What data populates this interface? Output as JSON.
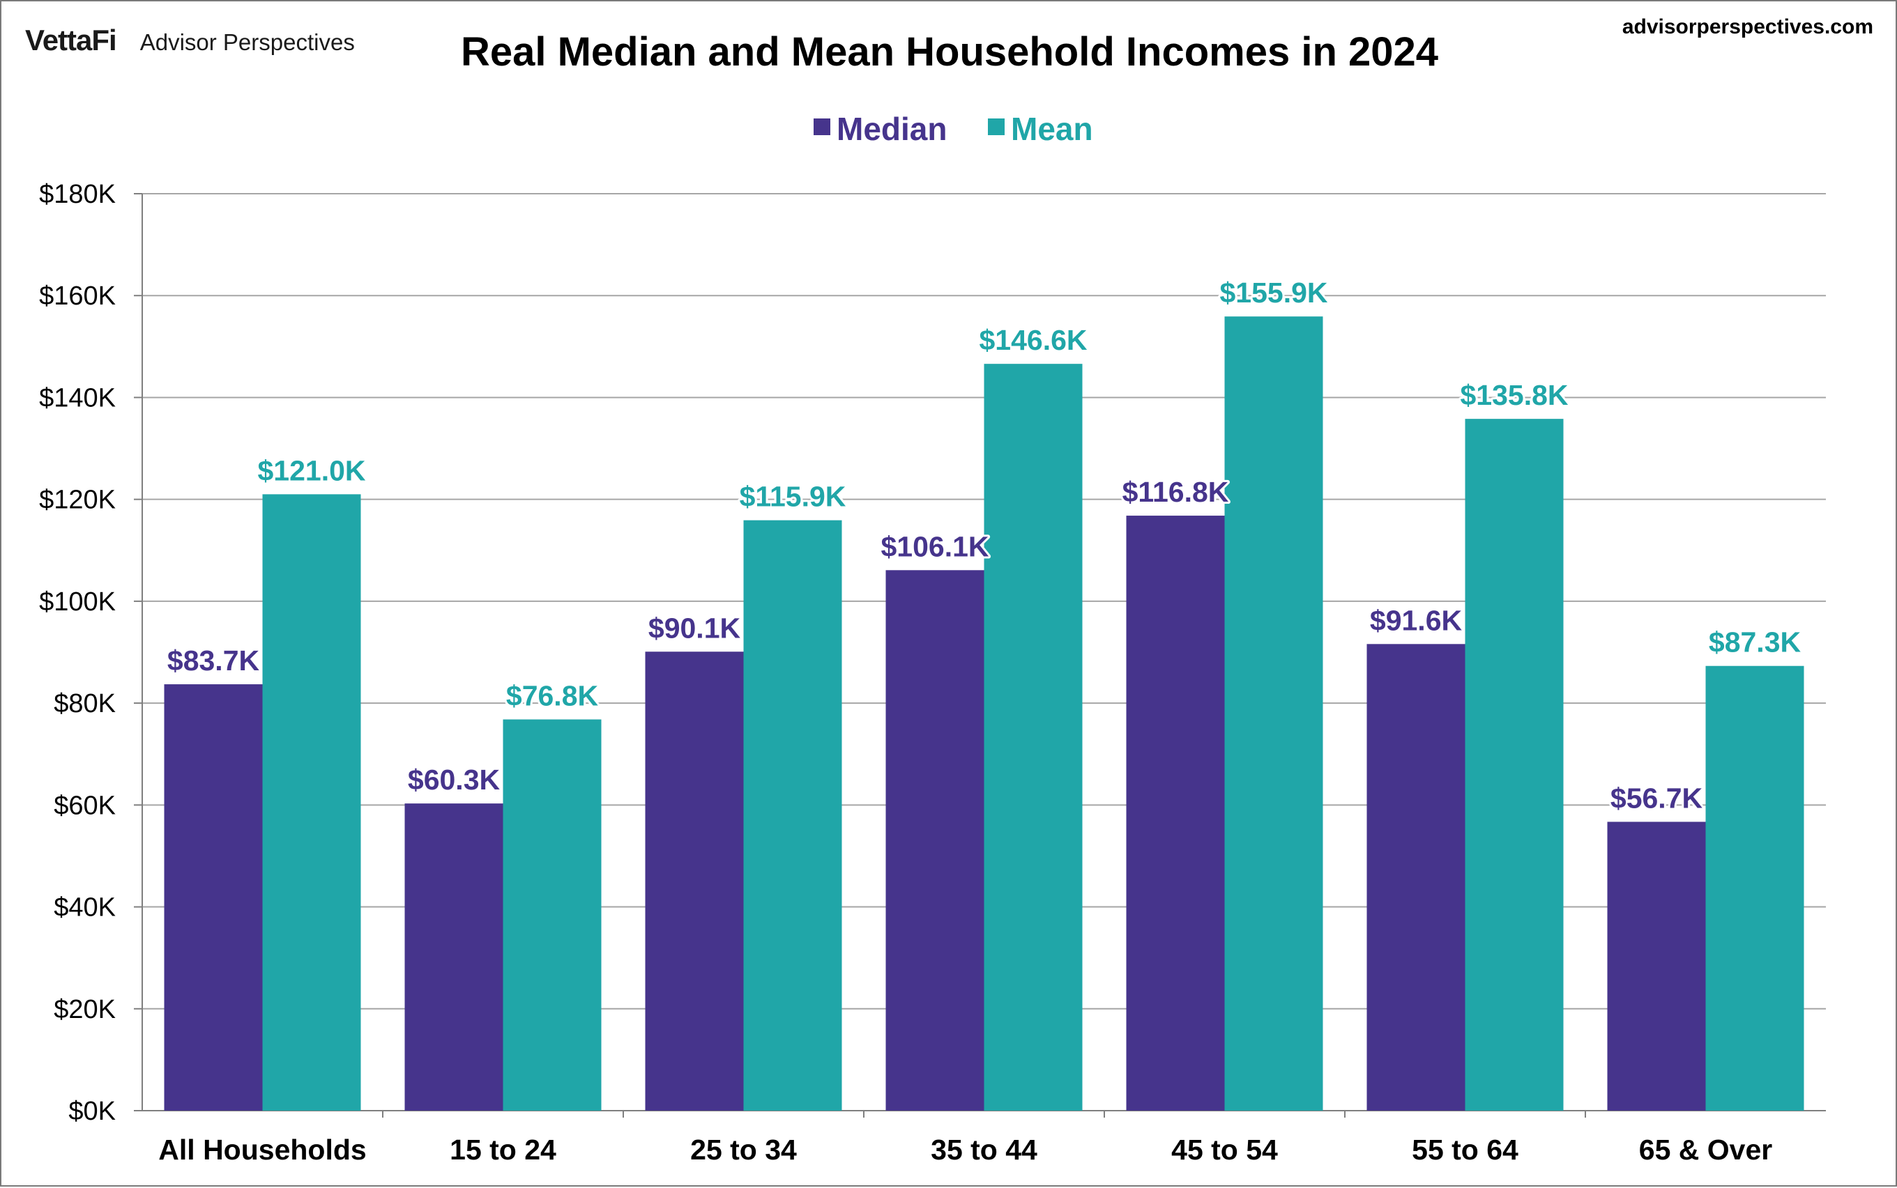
{
  "brand": {
    "logo": "VettaFi",
    "name": "Advisor Perspectives"
  },
  "site_url": "advisorperspectives.com",
  "colors": {
    "median": "#46348c",
    "mean": "#20a6a8",
    "grid": "#a6a6a6",
    "axis": "#7f7f7f"
  },
  "chart_data": {
    "type": "bar",
    "title": "Real Median and Mean Household Incomes in 2024",
    "categories": [
      "All Households",
      "15 to 24",
      "25 to 34",
      "35 to 44",
      "45 to 54",
      "55 to 64",
      "65 & Over"
    ],
    "series": [
      {
        "name": "Median",
        "color": "#46348c",
        "values": [
          83.7,
          60.3,
          90.1,
          106.1,
          116.8,
          91.6,
          56.7
        ],
        "labels": [
          "$83.7K",
          "$60.3K",
          "$90.1K",
          "$106.1K",
          "$116.8K",
          "$91.6K",
          "$56.7K"
        ]
      },
      {
        "name": "Mean",
        "color": "#20a6a8",
        "values": [
          121.0,
          76.8,
          115.9,
          146.6,
          155.9,
          135.8,
          87.3
        ],
        "labels": [
          "$121.0K",
          "$76.8K",
          "$115.9K",
          "$146.6K",
          "$155.9K",
          "$135.8K",
          "$87.3K"
        ]
      }
    ],
    "ylim": [
      0,
      180
    ],
    "yticks": [
      0,
      20,
      40,
      60,
      80,
      100,
      120,
      140,
      160,
      180
    ],
    "ytick_labels": [
      "$0K",
      "$20K",
      "$40K",
      "$60K",
      "$80K",
      "$100K",
      "$120K",
      "$140K",
      "$160K",
      "$180K"
    ],
    "xlabel": "",
    "ylabel": "",
    "grid": true,
    "legend_position": "top-center"
  }
}
